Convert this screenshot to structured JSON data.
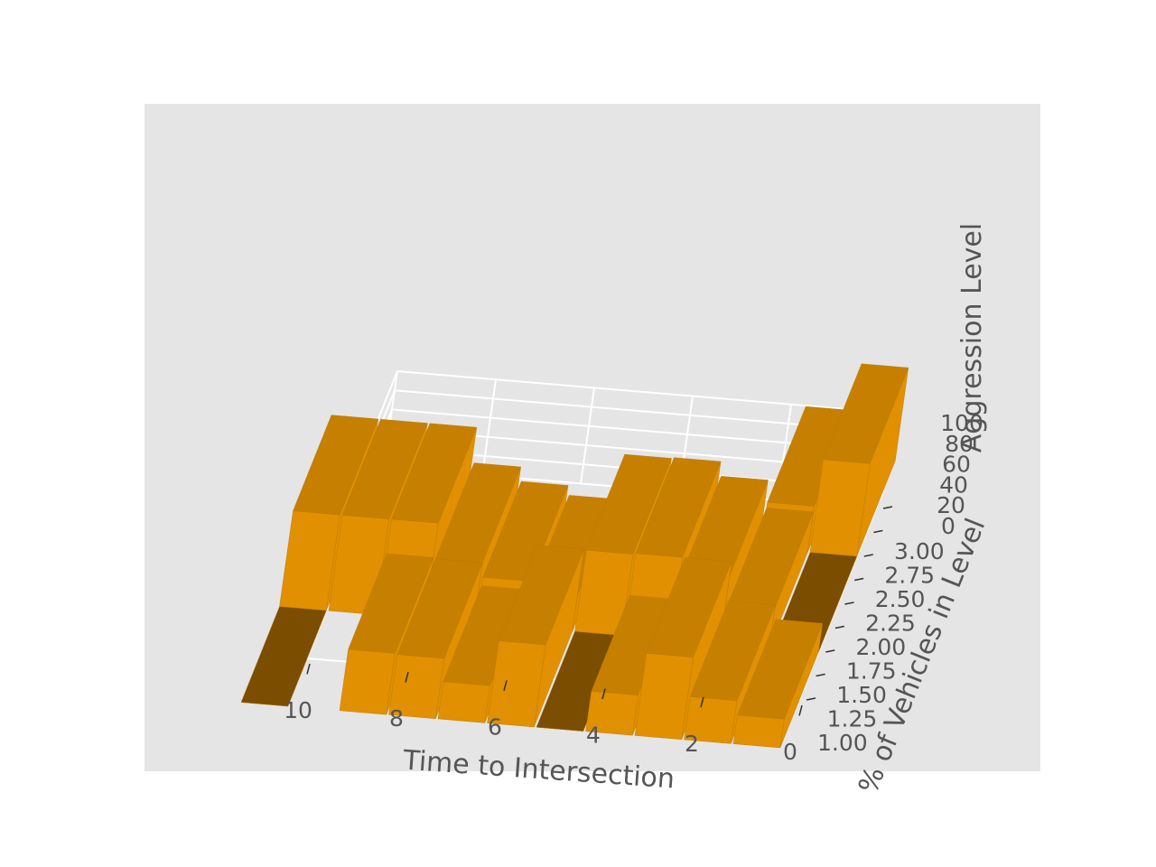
{
  "chart_data": {
    "type": "bar3d",
    "title": "",
    "xlabel": "Time to Intersection",
    "ylabel": "% of Vehicles in Level",
    "zlabel": "Aggression Level",
    "x_ticks": [
      "10",
      "8",
      "6",
      "4",
      "2",
      "0"
    ],
    "y_ticks": [
      "1.00",
      "1.25",
      "1.50",
      "1.75",
      "2.00",
      "2.25",
      "2.50",
      "2.75",
      "3.00"
    ],
    "z_ticks": [
      "0",
      "20",
      "40",
      "60",
      "80",
      "100"
    ],
    "x_range": [
      0,
      10
    ],
    "y_range": [
      1,
      3
    ],
    "z_range": [
      0,
      100
    ],
    "bar_color": "#e09000",
    "pane_color": "#e5e5e5",
    "grid": true,
    "bars": [
      {
        "x": 10,
        "y": 1,
        "z": 0
      },
      {
        "x": 8,
        "y": 1,
        "z": 64
      },
      {
        "x": 7,
        "y": 1,
        "z": 63
      },
      {
        "x": 6,
        "y": 1,
        "z": 39
      },
      {
        "x": 5,
        "y": 1,
        "z": 86
      },
      {
        "x": 4,
        "y": 1,
        "z": 0
      },
      {
        "x": 3,
        "y": 1,
        "z": 42
      },
      {
        "x": 2,
        "y": 1,
        "z": 86
      },
      {
        "x": 1,
        "y": 1,
        "z": 45
      },
      {
        "x": 0,
        "y": 1,
        "z": 30
      },
      {
        "x": 10,
        "y": 2,
        "z": 100
      },
      {
        "x": 9,
        "y": 2,
        "z": 100
      },
      {
        "x": 8,
        "y": 2,
        "z": 100
      },
      {
        "x": 7,
        "y": 2,
        "z": 63
      },
      {
        "x": 6,
        "y": 2,
        "z": 48
      },
      {
        "x": 5,
        "y": 2,
        "z": 38
      },
      {
        "x": 4,
        "y": 2,
        "z": 85
      },
      {
        "x": 3,
        "y": 2,
        "z": 86
      },
      {
        "x": 2,
        "y": 2,
        "z": 71
      },
      {
        "x": 1,
        "y": 2,
        "z": 42
      },
      {
        "x": 0,
        "y": 2,
        "z": 0
      },
      {
        "x": 1,
        "y": 3,
        "z": 48
      },
      {
        "x": 0,
        "y": 3,
        "z": 97
      }
    ]
  }
}
